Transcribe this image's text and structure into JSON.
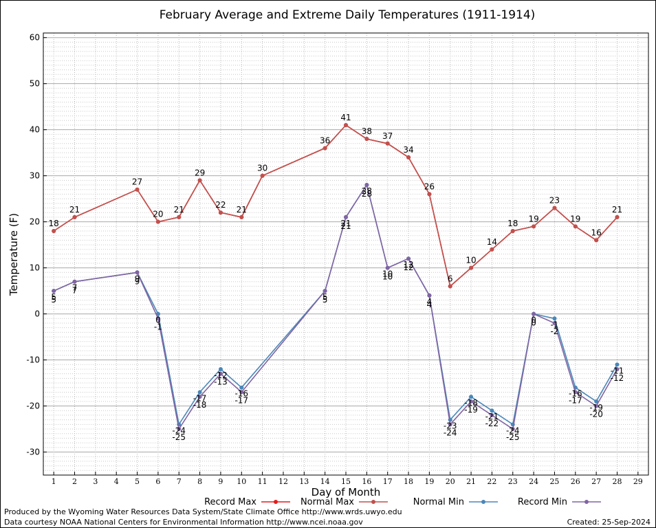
{
  "chart_data": {
    "type": "line",
    "title": "February Average and Extreme Daily Temperatures (1911-1914)",
    "xlabel": "Day of Month",
    "ylabel": "Temperature (F)",
    "xlim": [
      0.5,
      29.5
    ],
    "ylim": [
      -35,
      61
    ],
    "x_ticks": [
      1,
      2,
      3,
      4,
      5,
      6,
      7,
      8,
      9,
      10,
      11,
      12,
      13,
      14,
      15,
      16,
      17,
      18,
      19,
      20,
      21,
      22,
      23,
      24,
      25,
      26,
      27,
      28,
      29
    ],
    "y_ticks": [
      -30,
      -20,
      -10,
      0,
      10,
      20,
      30,
      40,
      50,
      60
    ],
    "grid": true,
    "legend_placement": "bottom",
    "series": [
      {
        "name": "Record Max",
        "color": "#e41a1c",
        "x": [
          1,
          2,
          5,
          6,
          7,
          8,
          9,
          10,
          11,
          14,
          15,
          16,
          17,
          18,
          19,
          20,
          21,
          22,
          23,
          24,
          25,
          26,
          27,
          28
        ],
        "values": [
          18,
          21,
          27,
          20,
          21,
          29,
          22,
          21,
          30,
          36,
          41,
          38,
          37,
          34,
          26,
          6,
          10,
          14,
          18,
          19,
          23,
          19,
          16,
          21
        ],
        "labels": [
          "18",
          "21",
          "27",
          "20",
          "21",
          "29",
          "22",
          "21",
          "30",
          "36",
          "41",
          "38",
          "37",
          "34",
          "26",
          "6",
          "10",
          "14",
          "18",
          "19",
          "23",
          "19",
          "16",
          "21"
        ],
        "label_pos": "above"
      },
      {
        "name": "Normal Max",
        "color": "#c0504d",
        "x": [
          1,
          2,
          5,
          6,
          7,
          8,
          9,
          10,
          11,
          14,
          15,
          16,
          17,
          18,
          19,
          20,
          21,
          22,
          23,
          24,
          25,
          26,
          27,
          28
        ],
        "values": [
          18,
          21,
          27,
          20,
          21,
          29,
          22,
          21,
          30,
          36,
          41,
          38,
          37,
          34,
          26,
          6,
          10,
          14,
          18,
          19,
          23,
          19,
          16,
          21
        ],
        "label_pos": "none"
      },
      {
        "name": "Normal Min",
        "color": "#4a87b8",
        "x": [
          1,
          2,
          5,
          6,
          7,
          8,
          9,
          10,
          14,
          15,
          16,
          17,
          18,
          19,
          20,
          21,
          22,
          23,
          24,
          25,
          26,
          27,
          28
        ],
        "values": [
          5,
          7,
          9,
          0,
          -24,
          -17,
          -12,
          -16,
          5,
          21,
          28,
          10,
          12,
          4,
          -23,
          -18,
          -21,
          -24,
          0,
          -1,
          -16,
          -19,
          -11
        ],
        "labels": [
          "5",
          "7",
          "9",
          "0",
          "-24",
          "-17",
          "-12",
          "-16",
          "5",
          "21",
          "28",
          "10",
          "12",
          "4",
          "-23",
          "-18",
          "-21",
          "-24",
          "0",
          "-1",
          "-16",
          "-19",
          "-11"
        ],
        "label_pos": "below_pair"
      },
      {
        "name": "Record Min",
        "color": "#8064a2",
        "x": [
          1,
          2,
          5,
          6,
          7,
          8,
          9,
          10,
          14,
          15,
          16,
          17,
          18,
          19,
          20,
          21,
          22,
          23,
          24,
          25,
          26,
          27,
          28
        ],
        "values": [
          5,
          7,
          9,
          -1,
          -25,
          -18,
          -13,
          -17,
          5,
          21,
          28,
          10,
          12,
          4,
          -24,
          -19,
          -22,
          -25,
          0,
          -2,
          -17,
          -20,
          -12
        ],
        "labels": [
          "5",
          "7",
          "9",
          "-1",
          "-25",
          "-18",
          "-13",
          "-17",
          "5",
          "21",
          "28",
          "10",
          "12",
          "4",
          "-24",
          "-19",
          "-22",
          "-25",
          "0",
          "-2",
          "-17",
          "-20",
          "-12"
        ],
        "label_pos": "below"
      }
    ]
  },
  "footer": {
    "line1": "Produced by the Wyoming Water Resources Data System/State Climate Office http://www.wrds.uwyo.edu",
    "line2": "Data courtesy NOAA National Centers for Environmental Information http://www.ncei.noaa.gov",
    "created": "Created:  25-Sep-2024"
  }
}
